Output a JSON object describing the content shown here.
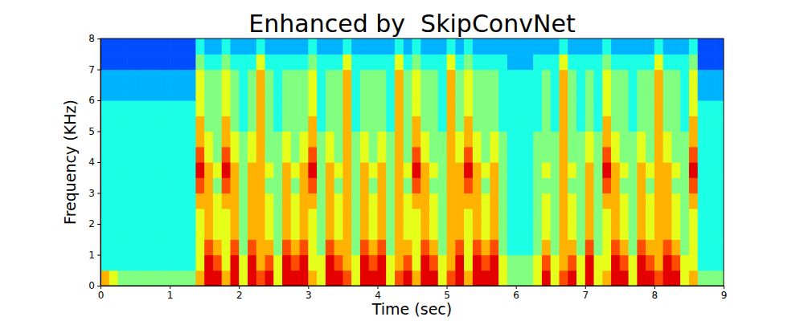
{
  "chart_data": {
    "type": "heatmap",
    "title": "Enhanced by  SkipConvNet",
    "xlabel": "Time (sec)",
    "ylabel": "Frequency (KHz)",
    "xlim": [
      0,
      9
    ],
    "ylim": [
      0,
      8
    ],
    "xticks": [
      0,
      1,
      2,
      3,
      4,
      5,
      6,
      7,
      8,
      9
    ],
    "yticks": [
      0,
      1,
      2,
      3,
      4,
      5,
      6,
      7,
      8
    ],
    "zlim": [
      0,
      10
    ],
    "x": [
      0,
      0.125,
      0.25,
      0.375,
      0.5,
      0.625,
      0.75,
      0.875,
      1,
      1.125,
      1.25,
      1.375,
      1.5,
      1.625,
      1.75,
      1.875,
      2,
      2.125,
      2.25,
      2.375,
      2.5,
      2.625,
      2.75,
      2.875,
      3,
      3.125,
      3.25,
      3.375,
      3.5,
      3.625,
      3.75,
      3.875,
      4,
      4.125,
      4.25,
      4.375,
      4.5,
      4.625,
      4.75,
      4.875,
      5,
      5.125,
      5.25,
      5.375,
      5.5,
      5.625,
      5.75,
      5.875,
      6,
      6.125,
      6.25,
      6.375,
      6.5,
      6.625,
      6.75,
      6.875,
      7,
      7.125,
      7.25,
      7.375,
      7.5,
      7.625,
      7.75,
      7.875,
      8,
      8.125,
      8.25,
      8.375,
      8.5,
      8.625,
      8.75,
      8.875
    ],
    "y": [
      0,
      0.5,
      1,
      1.5,
      2,
      2.5,
      3,
      3.5,
      4,
      4.5,
      5,
      5.5,
      6,
      6.5,
      7,
      7.5
    ],
    "cells": [
      [
        7,
        6,
        5,
        5,
        5,
        5,
        5,
        5,
        5,
        5,
        5,
        7,
        9,
        9,
        7,
        9,
        6,
        9,
        8,
        9,
        6,
        9,
        9,
        9,
        7,
        6,
        9,
        9,
        8,
        6,
        9,
        9,
        9,
        6,
        8,
        9,
        7,
        9,
        9,
        6,
        8,
        9,
        7,
        9,
        9,
        9,
        6,
        5,
        5,
        5,
        6,
        9,
        6,
        8,
        9,
        6,
        9,
        6,
        7,
        9,
        9,
        6,
        9,
        9,
        8,
        9,
        9,
        6,
        7,
        5,
        5,
        5
      ],
      [
        4,
        4,
        4,
        4,
        4,
        4,
        4,
        4,
        4,
        4,
        4,
        6,
        9,
        8,
        6,
        9,
        6,
        9,
        7,
        8,
        6,
        9,
        8,
        9,
        6,
        6,
        9,
        8,
        7,
        6,
        9,
        8,
        9,
        6,
        7,
        8,
        6,
        9,
        8,
        6,
        7,
        9,
        6,
        9,
        8,
        9,
        6,
        5,
        5,
        5,
        6,
        8,
        6,
        7,
        8,
        6,
        9,
        6,
        6,
        9,
        8,
        6,
        9,
        8,
        7,
        9,
        8,
        6,
        6,
        4,
        4,
        4
      ],
      [
        4,
        4,
        4,
        4,
        4,
        4,
        4,
        4,
        4,
        4,
        4,
        6,
        8,
        7,
        6,
        8,
        5,
        8,
        7,
        7,
        5,
        8,
        7,
        8,
        6,
        5,
        8,
        7,
        7,
        5,
        8,
        7,
        8,
        5,
        7,
        7,
        6,
        8,
        7,
        5,
        7,
        8,
        6,
        8,
        7,
        8,
        5,
        4,
        4,
        4,
        5,
        7,
        5,
        7,
        7,
        5,
        8,
        5,
        6,
        8,
        7,
        5,
        8,
        7,
        7,
        8,
        7,
        5,
        6,
        4,
        4,
        4
      ],
      [
        4,
        4,
        4,
        4,
        4,
        4,
        4,
        4,
        4,
        4,
        4,
        6,
        7,
        6,
        6,
        7,
        5,
        7,
        7,
        6,
        5,
        7,
        6,
        7,
        6,
        5,
        7,
        6,
        7,
        5,
        7,
        6,
        7,
        5,
        7,
        6,
        6,
        7,
        6,
        5,
        7,
        7,
        6,
        7,
        6,
        7,
        5,
        4,
        4,
        4,
        5,
        6,
        5,
        7,
        6,
        5,
        7,
        5,
        6,
        7,
        6,
        5,
        7,
        6,
        7,
        7,
        6,
        5,
        6,
        4,
        4,
        4
      ],
      [
        4,
        4,
        4,
        4,
        4,
        4,
        4,
        4,
        4,
        4,
        4,
        6,
        7,
        6,
        6,
        7,
        5,
        7,
        7,
        6,
        5,
        7,
        6,
        7,
        6,
        5,
        7,
        6,
        7,
        5,
        7,
        6,
        7,
        5,
        7,
        6,
        6,
        7,
        6,
        5,
        7,
        7,
        6,
        7,
        6,
        7,
        5,
        4,
        4,
        4,
        5,
        6,
        5,
        7,
        6,
        5,
        7,
        5,
        6,
        7,
        6,
        5,
        7,
        6,
        7,
        7,
        6,
        5,
        6,
        4,
        4,
        4
      ],
      [
        4,
        4,
        4,
        4,
        4,
        4,
        4,
        4,
        4,
        4,
        4,
        7,
        7,
        6,
        7,
        7,
        5,
        7,
        7,
        6,
        5,
        7,
        6,
        7,
        7,
        5,
        7,
        6,
        7,
        5,
        7,
        6,
        7,
        5,
        7,
        6,
        7,
        7,
        6,
        5,
        7,
        7,
        7,
        7,
        6,
        7,
        5,
        4,
        4,
        4,
        5,
        6,
        5,
        7,
        6,
        5,
        7,
        5,
        7,
        7,
        6,
        5,
        7,
        6,
        7,
        7,
        6,
        5,
        7,
        4,
        4,
        4
      ],
      [
        4,
        4,
        4,
        4,
        4,
        4,
        4,
        4,
        4,
        4,
        4,
        8,
        7,
        5,
        8,
        7,
        5,
        7,
        7,
        5,
        5,
        7,
        5,
        7,
        8,
        5,
        7,
        5,
        7,
        5,
        7,
        5,
        7,
        5,
        7,
        5,
        8,
        7,
        5,
        5,
        7,
        7,
        8,
        7,
        5,
        7,
        5,
        4,
        4,
        4,
        5,
        5,
        5,
        7,
        5,
        5,
        7,
        5,
        8,
        7,
        5,
        5,
        7,
        5,
        7,
        7,
        5,
        5,
        8,
        4,
        4,
        4
      ],
      [
        4,
        4,
        4,
        4,
        4,
        4,
        4,
        4,
        4,
        4,
        4,
        9,
        7,
        6,
        9,
        7,
        5,
        7,
        7,
        6,
        5,
        7,
        6,
        7,
        9,
        5,
        7,
        6,
        7,
        5,
        7,
        6,
        7,
        5,
        7,
        6,
        9,
        7,
        6,
        5,
        7,
        7,
        9,
        7,
        6,
        7,
        5,
        4,
        4,
        4,
        5,
        6,
        5,
        7,
        6,
        5,
        7,
        5,
        9,
        7,
        6,
        5,
        7,
        6,
        7,
        7,
        6,
        5,
        9,
        4,
        4,
        4
      ],
      [
        4,
        4,
        4,
        4,
        4,
        4,
        4,
        4,
        4,
        4,
        4,
        8,
        6,
        5,
        8,
        6,
        5,
        6,
        7,
        5,
        5,
        6,
        5,
        6,
        8,
        5,
        6,
        5,
        7,
        5,
        6,
        5,
        6,
        5,
        7,
        5,
        8,
        6,
        5,
        5,
        7,
        6,
        8,
        6,
        5,
        6,
        5,
        4,
        4,
        4,
        5,
        5,
        5,
        7,
        5,
        5,
        6,
        5,
        8,
        6,
        5,
        5,
        6,
        5,
        7,
        6,
        5,
        5,
        8,
        4,
        4,
        4
      ],
      [
        4,
        4,
        4,
        4,
        4,
        4,
        4,
        4,
        4,
        4,
        4,
        7,
        6,
        5,
        7,
        6,
        5,
        6,
        7,
        5,
        5,
        6,
        5,
        6,
        7,
        5,
        6,
        5,
        7,
        5,
        6,
        5,
        6,
        5,
        7,
        5,
        7,
        6,
        5,
        5,
        7,
        6,
        7,
        6,
        5,
        6,
        5,
        4,
        4,
        4,
        5,
        5,
        5,
        7,
        5,
        5,
        6,
        5,
        7,
        6,
        5,
        5,
        6,
        5,
        7,
        6,
        5,
        5,
        7,
        4,
        4,
        4
      ],
      [
        4,
        4,
        4,
        4,
        4,
        4,
        4,
        4,
        4,
        4,
        4,
        7,
        5,
        5,
        7,
        5,
        4,
        5,
        7,
        5,
        4,
        5,
        5,
        5,
        7,
        4,
        5,
        5,
        7,
        4,
        5,
        5,
        5,
        4,
        7,
        5,
        7,
        5,
        5,
        4,
        7,
        5,
        7,
        5,
        5,
        5,
        4,
        4,
        4,
        4,
        4,
        5,
        4,
        7,
        5,
        4,
        5,
        4,
        7,
        5,
        5,
        4,
        5,
        5,
        7,
        5,
        5,
        4,
        7,
        4,
        4,
        4
      ],
      [
        4,
        4,
        4,
        4,
        4,
        4,
        4,
        4,
        4,
        4,
        4,
        6,
        5,
        5,
        6,
        5,
        4,
        5,
        7,
        5,
        4,
        5,
        5,
        5,
        6,
        4,
        5,
        5,
        7,
        4,
        5,
        5,
        5,
        4,
        7,
        5,
        6,
        5,
        5,
        4,
        7,
        5,
        6,
        5,
        5,
        5,
        4,
        4,
        4,
        4,
        4,
        5,
        4,
        7,
        5,
        4,
        5,
        4,
        6,
        5,
        5,
        4,
        5,
        5,
        7,
        5,
        5,
        4,
        6,
        4,
        4,
        4
      ],
      [
        3,
        3,
        3,
        3,
        3,
        3,
        3,
        3,
        3,
        3,
        3,
        6,
        5,
        5,
        6,
        5,
        4,
        5,
        7,
        5,
        4,
        5,
        5,
        5,
        6,
        4,
        5,
        5,
        7,
        4,
        5,
        5,
        5,
        4,
        7,
        5,
        6,
        5,
        5,
        4,
        7,
        5,
        6,
        5,
        5,
        5,
        4,
        4,
        4,
        4,
        4,
        5,
        4,
        7,
        5,
        4,
        5,
        4,
        6,
        5,
        5,
        4,
        5,
        5,
        7,
        5,
        5,
        4,
        6,
        3,
        3,
        3
      ],
      [
        3,
        3,
        3,
        3,
        3,
        3,
        3,
        3,
        3,
        3,
        3,
        6,
        5,
        5,
        6,
        5,
        4,
        5,
        7,
        5,
        4,
        5,
        5,
        5,
        6,
        4,
        5,
        5,
        7,
        4,
        5,
        5,
        5,
        4,
        7,
        5,
        6,
        5,
        5,
        4,
        7,
        5,
        6,
        5,
        5,
        5,
        4,
        4,
        4,
        4,
        4,
        5,
        4,
        7,
        5,
        4,
        5,
        4,
        6,
        5,
        5,
        4,
        5,
        5,
        7,
        5,
        5,
        4,
        6,
        3,
        3,
        3
      ],
      [
        2,
        2,
        2,
        2,
        2,
        2,
        2,
        2,
        2,
        2,
        2,
        5,
        4,
        4,
        5,
        4,
        4,
        4,
        6,
        4,
        4,
        4,
        4,
        4,
        5,
        4,
        4,
        4,
        6,
        4,
        4,
        4,
        4,
        4,
        6,
        4,
        5,
        4,
        4,
        4,
        6,
        4,
        5,
        4,
        4,
        4,
        4,
        3,
        3,
        3,
        4,
        4,
        4,
        6,
        4,
        4,
        4,
        4,
        5,
        4,
        4,
        4,
        4,
        4,
        6,
        4,
        4,
        4,
        5,
        2,
        2,
        2
      ],
      [
        2,
        2,
        2,
        2,
        2,
        2,
        2,
        2,
        2,
        2,
        2,
        4,
        3,
        3,
        4,
        3,
        3,
        3,
        4,
        3,
        3,
        3,
        3,
        3,
        4,
        3,
        3,
        3,
        4,
        3,
        3,
        3,
        3,
        3,
        4,
        3,
        4,
        3,
        3,
        3,
        4,
        3,
        4,
        3,
        3,
        3,
        3,
        3,
        3,
        3,
        3,
        3,
        3,
        4,
        3,
        3,
        3,
        3,
        4,
        3,
        3,
        3,
        3,
        3,
        4,
        3,
        3,
        3,
        4,
        2,
        2,
        2
      ]
    ]
  }
}
